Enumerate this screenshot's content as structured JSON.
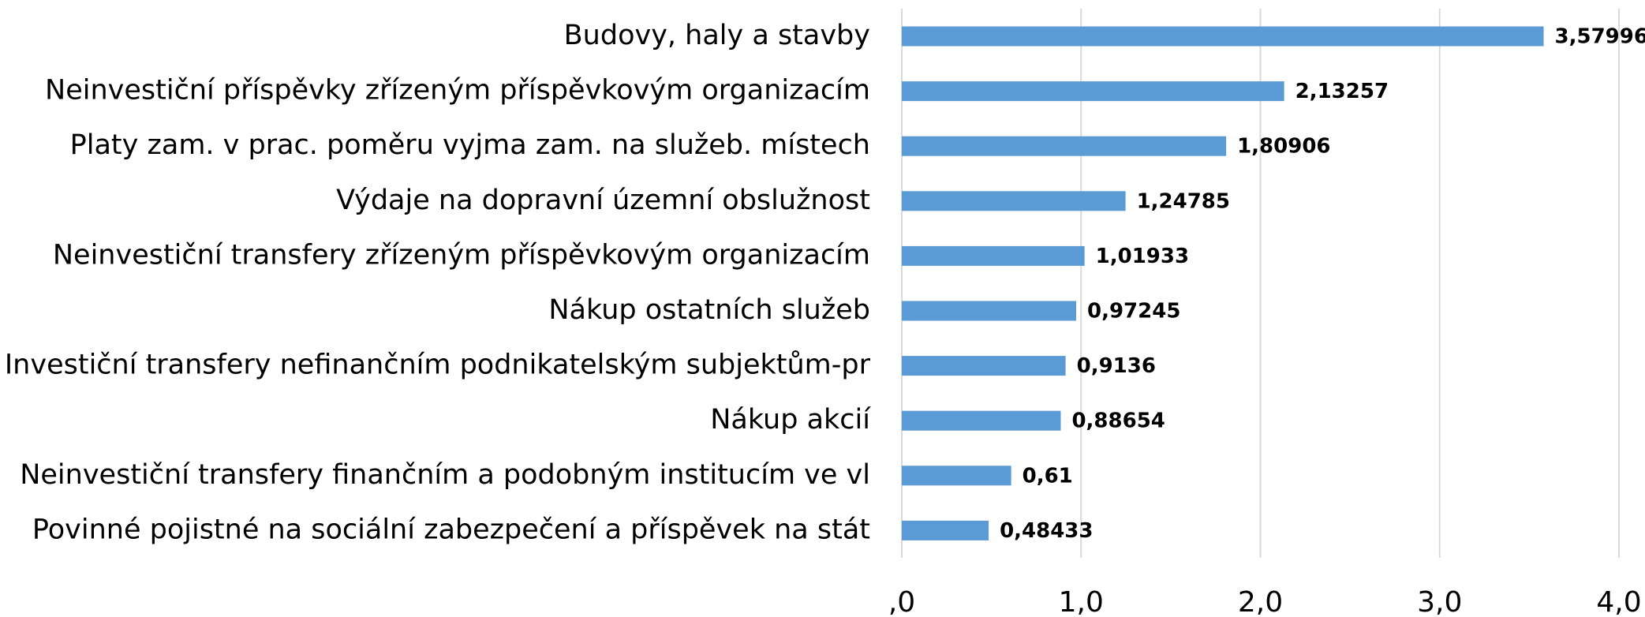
{
  "chart_data": {
    "type": "bar",
    "orientation": "horizontal",
    "categories": [
      "Budovy, haly a stavby",
      "Neinvestiční příspěvky zřízeným příspěvkovým organizacím",
      "Platy zam. v prac. poměru vyjma zam. na služeb. místech",
      "Výdaje na dopravní územní obslužnost",
      "Neinvestiční transfery zřízeným příspěvkovým organizacím",
      "Nákup ostatních služeb",
      "Investiční transfery nefinančním podnikatelským subjektům-pr",
      "Nákup akcií",
      "Neinvestiční transfery finančním a podobným institucím ve vl",
      "Povinné pojistné na sociální zabezpečení a příspěvek na stát"
    ],
    "values": [
      3.57996,
      2.13257,
      1.80906,
      1.24785,
      1.01933,
      0.97245,
      0.9136,
      0.88654,
      0.61,
      0.48433
    ],
    "value_labels": [
      "3,57996",
      "2,13257",
      "1,80906",
      "1,24785",
      "1,01933",
      "0,97245",
      "0,9136",
      "0,88654",
      "0,61",
      "0,48433"
    ],
    "color": "#5b9bd5",
    "xlim": [
      0,
      4
    ],
    "xticks": [
      {
        "value": 0,
        "label": ",0"
      },
      {
        "value": 1,
        "label": "1,0"
      },
      {
        "value": 2,
        "label": "2,0"
      },
      {
        "value": 3,
        "label": "3,0"
      },
      {
        "value": 4,
        "label": "4,0"
      }
    ],
    "grid": true
  }
}
